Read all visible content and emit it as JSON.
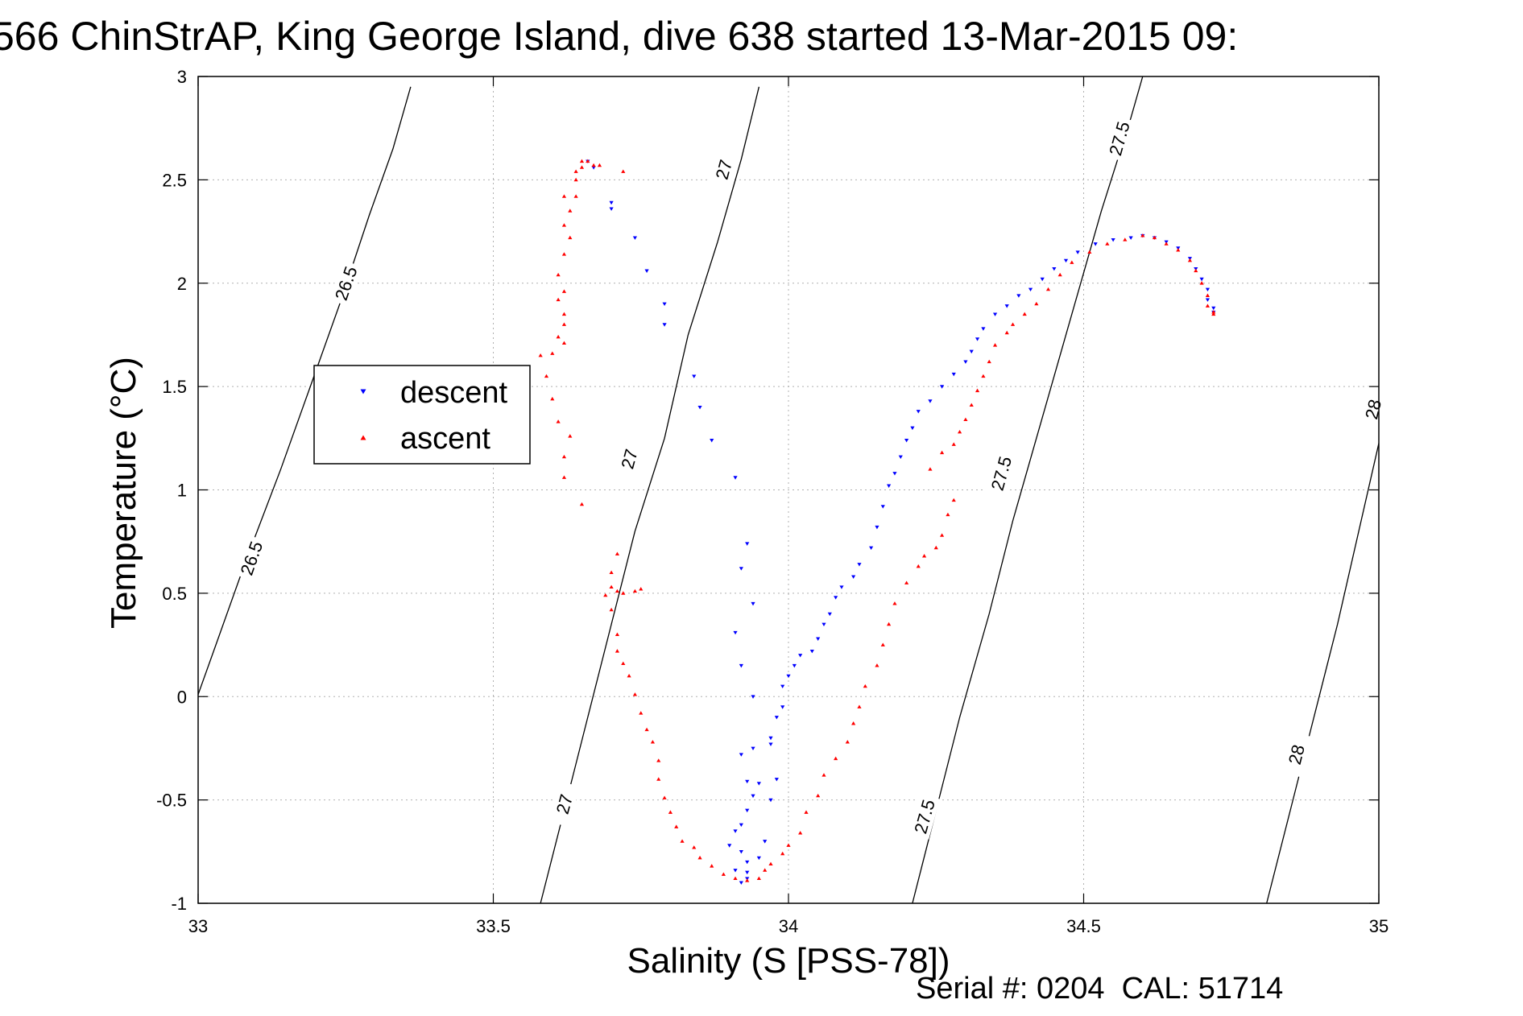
{
  "chart_data": {
    "type": "scatter",
    "title": "566 ChinStrAP, King George Island, dive 638 started 13-Mar-2015 09:",
    "xlabel": "Salinity (S [PSS-78])",
    "ylabel": "Temperature (°C)",
    "xlim": [
      33,
      35
    ],
    "ylim": [
      -1,
      3
    ],
    "xticks": [
      "33",
      "33.5",
      "34",
      "34.5",
      "35"
    ],
    "yticks": [
      "-1",
      "-0.5",
      "0",
      "0.5",
      "1",
      "1.5",
      "2",
      "2.5",
      "3"
    ],
    "grid": true,
    "legend_position": "left",
    "footer": "Serial #: 0204  CAL: 51714",
    "colors": {
      "descent": "#0000ff",
      "ascent": "#ff0000",
      "contour": "#000000",
      "grid": "#b0b0b0"
    },
    "series": [
      {
        "name": "descent",
        "marker": "down-triangle",
        "points": [
          [
            33.66,
            2.59
          ],
          [
            33.67,
            2.56
          ],
          [
            33.7,
            2.39
          ],
          [
            33.7,
            2.36
          ],
          [
            33.74,
            2.22
          ],
          [
            33.76,
            2.06
          ],
          [
            33.79,
            1.9
          ],
          [
            33.79,
            1.8
          ],
          [
            33.84,
            1.55
          ],
          [
            33.85,
            1.4
          ],
          [
            33.87,
            1.24
          ],
          [
            33.91,
            1.06
          ],
          [
            33.93,
            0.74
          ],
          [
            33.92,
            0.62
          ],
          [
            33.94,
            0.45
          ],
          [
            33.91,
            0.31
          ],
          [
            33.92,
            0.15
          ],
          [
            33.94,
            0.0
          ],
          [
            33.92,
            -0.28
          ],
          [
            33.94,
            -0.25
          ],
          [
            33.93,
            -0.41
          ],
          [
            33.95,
            -0.42
          ],
          [
            33.94,
            -0.48
          ],
          [
            33.93,
            -0.55
          ],
          [
            33.92,
            -0.62
          ],
          [
            33.91,
            -0.65
          ],
          [
            33.9,
            -0.72
          ],
          [
            33.92,
            -0.75
          ],
          [
            33.93,
            -0.8
          ],
          [
            33.91,
            -0.84
          ],
          [
            33.92,
            -0.9
          ],
          [
            33.93,
            -0.88
          ],
          [
            33.93,
            -0.85
          ],
          [
            33.95,
            -0.78
          ],
          [
            33.96,
            -0.7
          ],
          [
            33.97,
            -0.5
          ],
          [
            33.98,
            -0.4
          ],
          [
            33.97,
            -0.23
          ],
          [
            33.97,
            -0.2
          ],
          [
            33.98,
            -0.1
          ],
          [
            33.99,
            -0.05
          ],
          [
            33.99,
            0.05
          ],
          [
            34.0,
            0.1
          ],
          [
            34.01,
            0.15
          ],
          [
            34.02,
            0.2
          ],
          [
            34.04,
            0.22
          ],
          [
            34.05,
            0.28
          ],
          [
            34.06,
            0.35
          ],
          [
            34.07,
            0.4
          ],
          [
            34.08,
            0.48
          ],
          [
            34.09,
            0.53
          ],
          [
            34.11,
            0.58
          ],
          [
            34.12,
            0.64
          ],
          [
            34.14,
            0.72
          ],
          [
            34.15,
            0.82
          ],
          [
            34.16,
            0.92
          ],
          [
            34.17,
            1.02
          ],
          [
            34.18,
            1.08
          ],
          [
            34.19,
            1.16
          ],
          [
            34.2,
            1.24
          ],
          [
            34.21,
            1.3
          ],
          [
            34.22,
            1.38
          ],
          [
            34.24,
            1.43
          ],
          [
            34.26,
            1.5
          ],
          [
            34.28,
            1.56
          ],
          [
            34.3,
            1.62
          ],
          [
            34.31,
            1.67
          ],
          [
            34.32,
            1.73
          ],
          [
            34.33,
            1.78
          ],
          [
            34.35,
            1.85
          ],
          [
            34.37,
            1.89
          ],
          [
            34.39,
            1.94
          ],
          [
            34.41,
            1.97
          ],
          [
            34.43,
            2.02
          ],
          [
            34.45,
            2.07
          ],
          [
            34.47,
            2.11
          ],
          [
            34.49,
            2.15
          ],
          [
            34.52,
            2.19
          ],
          [
            34.55,
            2.21
          ],
          [
            34.58,
            2.22
          ],
          [
            34.6,
            2.23
          ],
          [
            34.62,
            2.22
          ],
          [
            34.64,
            2.2
          ],
          [
            34.66,
            2.17
          ],
          [
            34.68,
            2.12
          ],
          [
            34.69,
            2.07
          ],
          [
            34.7,
            2.02
          ],
          [
            34.71,
            1.97
          ],
          [
            34.71,
            1.92
          ],
          [
            34.72,
            1.88
          ],
          [
            34.72,
            1.86
          ]
        ]
      },
      {
        "name": "ascent",
        "marker": "up-triangle",
        "points": [
          [
            33.65,
            2.59
          ],
          [
            33.66,
            2.59
          ],
          [
            33.65,
            2.56
          ],
          [
            33.67,
            2.57
          ],
          [
            33.64,
            2.54
          ],
          [
            33.64,
            2.5
          ],
          [
            33.68,
            2.57
          ],
          [
            33.72,
            2.54
          ],
          [
            33.62,
            2.42
          ],
          [
            33.64,
            2.42
          ],
          [
            33.63,
            2.35
          ],
          [
            33.62,
            2.28
          ],
          [
            33.63,
            2.22
          ],
          [
            33.62,
            2.14
          ],
          [
            33.61,
            2.04
          ],
          [
            33.62,
            1.96
          ],
          [
            33.61,
            1.92
          ],
          [
            33.62,
            1.85
          ],
          [
            33.62,
            1.8
          ],
          [
            33.61,
            1.74
          ],
          [
            33.62,
            1.71
          ],
          [
            33.6,
            1.66
          ],
          [
            33.58,
            1.65
          ],
          [
            33.59,
            1.55
          ],
          [
            33.6,
            1.44
          ],
          [
            33.61,
            1.33
          ],
          [
            33.63,
            1.26
          ],
          [
            33.62,
            1.16
          ],
          [
            33.62,
            1.06
          ],
          [
            33.65,
            0.93
          ],
          [
            33.7,
            0.6
          ],
          [
            33.71,
            0.69
          ],
          [
            33.7,
            0.53
          ],
          [
            33.71,
            0.51
          ],
          [
            33.72,
            0.5
          ],
          [
            33.74,
            0.51
          ],
          [
            33.75,
            0.52
          ],
          [
            33.69,
            0.49
          ],
          [
            33.7,
            0.42
          ],
          [
            33.71,
            0.3
          ],
          [
            33.71,
            0.22
          ],
          [
            33.72,
            0.16
          ],
          [
            33.73,
            0.1
          ],
          [
            33.74,
            0.01
          ],
          [
            33.75,
            -0.08
          ],
          [
            33.76,
            -0.16
          ],
          [
            33.77,
            -0.22
          ],
          [
            33.78,
            -0.31
          ],
          [
            33.78,
            -0.4
          ],
          [
            33.79,
            -0.49
          ],
          [
            33.8,
            -0.56
          ],
          [
            33.81,
            -0.63
          ],
          [
            33.82,
            -0.7
          ],
          [
            33.84,
            -0.73
          ],
          [
            33.85,
            -0.78
          ],
          [
            33.87,
            -0.82
          ],
          [
            33.89,
            -0.86
          ],
          [
            33.91,
            -0.88
          ],
          [
            33.93,
            -0.89
          ],
          [
            33.95,
            -0.88
          ],
          [
            33.96,
            -0.84
          ],
          [
            33.97,
            -0.81
          ],
          [
            33.99,
            -0.76
          ],
          [
            34.0,
            -0.72
          ],
          [
            34.02,
            -0.66
          ],
          [
            34.03,
            -0.56
          ],
          [
            34.05,
            -0.48
          ],
          [
            34.06,
            -0.38
          ],
          [
            34.08,
            -0.3
          ],
          [
            34.1,
            -0.22
          ],
          [
            34.11,
            -0.13
          ],
          [
            34.12,
            -0.05
          ],
          [
            34.13,
            0.05
          ],
          [
            34.15,
            0.15
          ],
          [
            34.16,
            0.25
          ],
          [
            34.17,
            0.35
          ],
          [
            34.18,
            0.45
          ],
          [
            34.2,
            0.55
          ],
          [
            34.22,
            0.63
          ],
          [
            34.23,
            0.68
          ],
          [
            34.25,
            0.72
          ],
          [
            34.26,
            0.78
          ],
          [
            34.27,
            0.88
          ],
          [
            34.28,
            0.95
          ],
          [
            34.24,
            1.1
          ],
          [
            34.26,
            1.18
          ],
          [
            34.28,
            1.22
          ],
          [
            34.29,
            1.28
          ],
          [
            34.3,
            1.34
          ],
          [
            34.31,
            1.41
          ],
          [
            34.32,
            1.48
          ],
          [
            34.33,
            1.55
          ],
          [
            34.34,
            1.62
          ],
          [
            34.35,
            1.7
          ],
          [
            34.37,
            1.76
          ],
          [
            34.38,
            1.8
          ],
          [
            34.4,
            1.85
          ],
          [
            34.42,
            1.9
          ],
          [
            34.44,
            1.97
          ],
          [
            34.46,
            2.04
          ],
          [
            34.48,
            2.1
          ],
          [
            34.51,
            2.15
          ],
          [
            34.54,
            2.19
          ],
          [
            34.57,
            2.21
          ],
          [
            34.6,
            2.23
          ],
          [
            34.62,
            2.22
          ],
          [
            34.64,
            2.19
          ],
          [
            34.66,
            2.16
          ],
          [
            34.68,
            2.11
          ],
          [
            34.69,
            2.06
          ],
          [
            34.7,
            2.0
          ],
          [
            34.71,
            1.94
          ],
          [
            34.71,
            1.89
          ],
          [
            34.72,
            1.86
          ],
          [
            34.72,
            1.85
          ]
        ]
      }
    ],
    "isopycnals": [
      {
        "label": "26.5",
        "points": [
          [
            32.98,
            -0.15
          ],
          [
            33.03,
            0.25
          ],
          [
            33.08,
            0.65
          ],
          [
            33.14,
            1.1
          ],
          [
            33.19,
            1.5
          ],
          [
            33.24,
            1.9
          ],
          [
            33.29,
            2.33
          ],
          [
            33.33,
            2.65
          ],
          [
            33.36,
            2.95
          ]
        ],
        "labels": [
          [
            33.09,
            0.67
          ],
          [
            33.25,
            2.0
          ]
        ]
      },
      {
        "label": "27",
        "points": [
          [
            33.58,
            -1.0
          ],
          [
            33.62,
            -0.55
          ],
          [
            33.66,
            -0.1
          ],
          [
            33.7,
            0.35
          ],
          [
            33.74,
            0.8
          ],
          [
            33.79,
            1.25
          ],
          [
            33.83,
            1.75
          ],
          [
            33.88,
            2.2
          ],
          [
            33.92,
            2.6
          ],
          [
            33.95,
            2.95
          ]
        ],
        "labels": [
          [
            33.62,
            -0.52
          ],
          [
            33.73,
            1.15
          ],
          [
            33.89,
            2.55
          ]
        ]
      },
      {
        "label": "27.5",
        "points": [
          [
            34.21,
            -1.0
          ],
          [
            34.25,
            -0.55
          ],
          [
            34.29,
            -0.1
          ],
          [
            34.34,
            0.4
          ],
          [
            34.38,
            0.85
          ],
          [
            34.43,
            1.35
          ],
          [
            34.48,
            1.85
          ],
          [
            34.53,
            2.35
          ],
          [
            34.58,
            2.8
          ],
          [
            34.6,
            3.0
          ]
        ],
        "labels": [
          [
            34.23,
            -0.58
          ],
          [
            34.36,
            1.08
          ],
          [
            34.56,
            2.7
          ]
        ]
      },
      {
        "label": "28",
        "points": [
          [
            34.81,
            -1.0
          ],
          [
            34.85,
            -0.55
          ],
          [
            34.89,
            -0.1
          ],
          [
            34.93,
            0.35
          ],
          [
            34.97,
            0.85
          ],
          [
            35.01,
            1.35
          ],
          [
            35.02,
            1.45
          ]
        ],
        "labels": [
          [
            34.86,
            -0.28
          ],
          [
            34.99,
            1.39
          ]
        ]
      }
    ]
  }
}
